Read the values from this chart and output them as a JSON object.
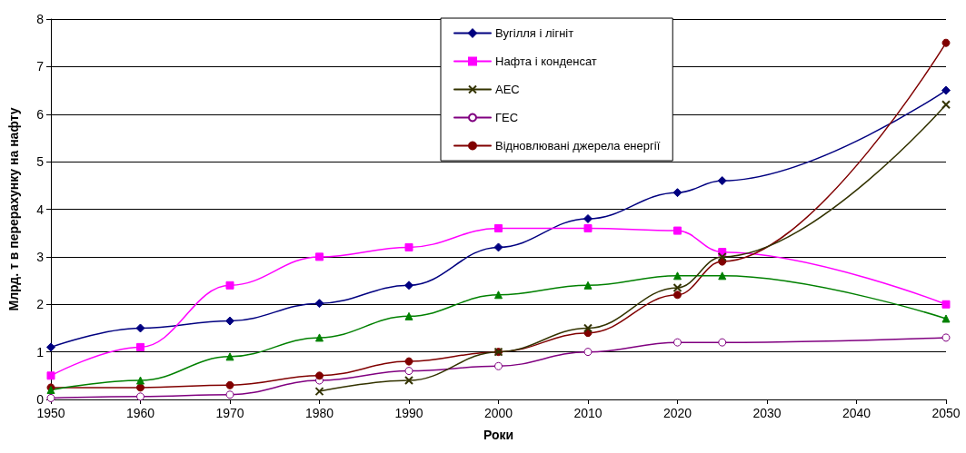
{
  "chart_data": {
    "type": "line",
    "xlabel": "Роки",
    "ylabel": "Млрд. т в перерахунку на нафту",
    "x": [
      1950,
      1960,
      1970,
      1980,
      1990,
      2000,
      2010,
      2020,
      2025,
      2050
    ],
    "series": [
      {
        "name": "Вугілля і лігніт",
        "color": "#000080",
        "marker": "diamond",
        "values": [
          1.1,
          1.5,
          1.65,
          2.02,
          2.4,
          3.2,
          3.8,
          4.35,
          4.6,
          6.5
        ]
      },
      {
        "name": "Нафта і конденсат",
        "color": "#ff00ff",
        "marker": "square",
        "values": [
          0.5,
          1.1,
          2.4,
          3.0,
          3.2,
          3.6,
          3.6,
          3.55,
          3.1,
          2.0
        ]
      },
      {
        "name": "АЕС",
        "color": "#333300",
        "marker": "cross",
        "x": [
          1980,
          1990,
          2000,
          2010,
          2020,
          2025,
          2050
        ],
        "values": [
          0.17,
          0.4,
          1.0,
          1.5,
          2.35,
          3.0,
          6.2
        ]
      },
      {
        "name": "ГЕС",
        "color": "#800080",
        "marker": "circle",
        "values": [
          0.03,
          0.06,
          0.1,
          0.4,
          0.6,
          0.7,
          1.0,
          1.2,
          1.2,
          1.3
        ]
      },
      {
        "name": "Відновлювані джерела енергії",
        "color": "#800000",
        "marker": "circle",
        "values": [
          0.25,
          0.25,
          0.3,
          0.5,
          0.8,
          1.0,
          1.4,
          2.2,
          2.9,
          7.5
        ]
      },
      {
        "color": "#008000",
        "marker": "triangle",
        "values": [
          0.2,
          0.4,
          0.9,
          1.3,
          1.75,
          2.2,
          2.4,
          2.6,
          2.6,
          1.7
        ]
      }
    ],
    "xlim": [
      1950,
      2050
    ],
    "xticks": [
      1950,
      1960,
      1970,
      1980,
      1990,
      2000,
      2010,
      2020,
      2030,
      2040,
      2050
    ],
    "ylim": [
      0,
      8
    ],
    "yticks": [
      0,
      1,
      2,
      3,
      4,
      5,
      6,
      7,
      8
    ],
    "grid": "y",
    "legend": "top",
    "line_style": "solid"
  }
}
